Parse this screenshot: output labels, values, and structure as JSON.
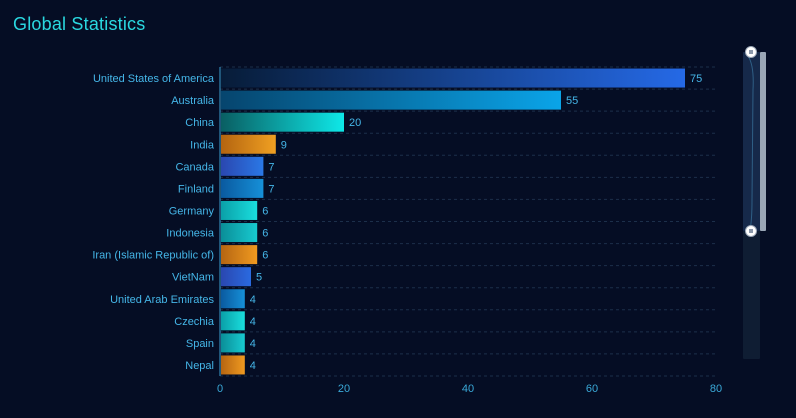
{
  "title": "Global Statistics",
  "chart_data": {
    "type": "bar",
    "orientation": "horizontal",
    "title": "Global Statistics",
    "xlabel": "",
    "ylabel": "",
    "categories": [
      "United States of America",
      "Australia",
      "China",
      "India",
      "Canada",
      "Finland",
      "Germany",
      "Indonesia",
      "Iran (Islamic Republic of)",
      "VietNam",
      "United Arab Emirates",
      "Czechia",
      "Spain",
      "Nepal"
    ],
    "values": [
      75,
      55,
      20,
      9,
      7,
      7,
      6,
      6,
      6,
      5,
      4,
      4,
      4,
      4
    ],
    "xlim": [
      0,
      80
    ],
    "xticks": [
      0,
      20,
      40,
      60,
      80
    ],
    "grid": "horizontal dashed",
    "legend": "none",
    "data_zoom": {
      "orientation": "vertical",
      "position": "right",
      "range_percent": [
        0,
        100
      ]
    },
    "bar_colors": [
      [
        "#071c38",
        "#2569e6"
      ],
      [
        "#06456e",
        "#0aa4e8"
      ],
      [
        "#0a5e62",
        "#0ee8e8"
      ],
      [
        "#b36410",
        "#f0a022"
      ],
      [
        "#2a47b0",
        "#2a78e6"
      ],
      [
        "#0a5aa0",
        "#1690d8"
      ],
      [
        "#0aa0a8",
        "#1adede"
      ],
      [
        "#0a8e98",
        "#18cad0"
      ],
      [
        "#b56512",
        "#f09a20"
      ],
      [
        "#2a47b0",
        "#2a6ae0"
      ],
      [
        "#0a5aa0",
        "#1690d8"
      ],
      [
        "#0aa0a8",
        "#1adede"
      ],
      [
        "#0a8e98",
        "#18cad0"
      ],
      [
        "#b56512",
        "#f09a20"
      ]
    ],
    "text_color": "#45b6e8",
    "title_color": "#2ad8e0"
  }
}
